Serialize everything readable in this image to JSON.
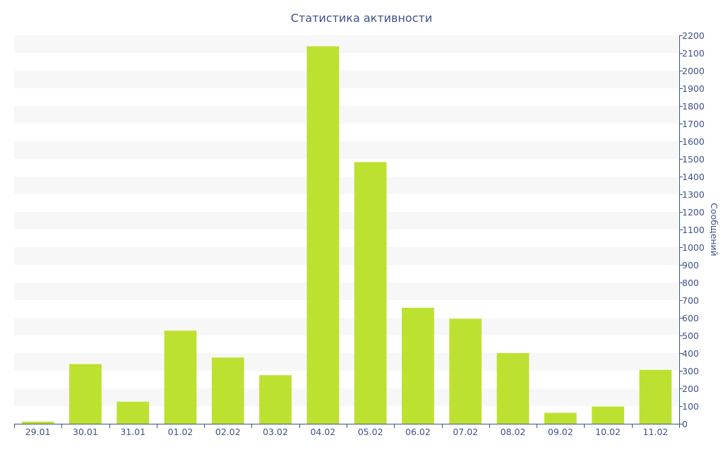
{
  "chart_data": {
    "type": "bar",
    "title": "Статистика активности",
    "xlabel": "",
    "ylabel": "Сообщений",
    "categories": [
      "29.01",
      "30.01",
      "31.01",
      "01.02",
      "02.02",
      "03.02",
      "04.02",
      "05.02",
      "06.02",
      "07.02",
      "08.02",
      "09.02",
      "10.02",
      "11.02"
    ],
    "values": [
      12,
      338,
      125,
      527,
      375,
      275,
      2138,
      1482,
      657,
      595,
      400,
      62,
      98,
      305
    ],
    "ylim": [
      0,
      2200
    ],
    "yticks": [
      0,
      100,
      200,
      300,
      400,
      500,
      600,
      700,
      800,
      900,
      1000,
      1100,
      1200,
      1300,
      1400,
      1500,
      1600,
      1700,
      1800,
      1900,
      2000,
      2100,
      2200
    ],
    "y_axis_side": "right",
    "grid": "alternating horizontal bands",
    "legend": "none",
    "colors": {
      "bar": "#bde130",
      "band": "#f7f7f7",
      "axis": "#3e5089",
      "text": "#3e5089"
    }
  }
}
